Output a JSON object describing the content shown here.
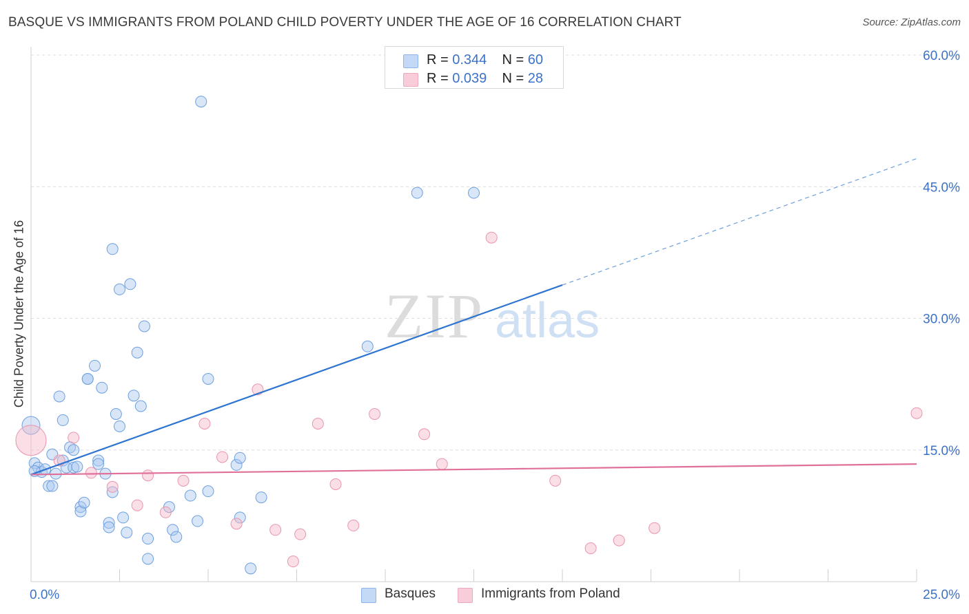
{
  "colors": {
    "blue_fill": "#a9c8f0",
    "blue_stroke": "#6d9fdf",
    "blue_line": "#2f74d0",
    "pink_fill": "#f5b7c8",
    "pink_stroke": "#e995ae",
    "pink_line": "#e0709a",
    "accent_text": "#3b72c8",
    "grid": "#dcdcdc"
  },
  "header": {
    "title": "BASQUE VS IMMIGRANTS FROM POLAND CHILD POVERTY UNDER THE AGE OF 16 CORRELATION CHART",
    "source": "Source: ZipAtlas.com"
  },
  "watermark": {
    "zip": "ZIP",
    "atlas": "atlas"
  },
  "legend": {
    "basques": {
      "r_label": "R =",
      "r_value": "0.344",
      "n_label": "N =",
      "n_value": "60"
    },
    "poland": {
      "r_label": "R =",
      "r_value": "0.039",
      "n_label": "N =",
      "n_value": "28"
    }
  },
  "chart_data": {
    "type": "scatter",
    "title": "BASQUE VS IMMIGRANTS FROM POLAND CHILD POVERTY UNDER THE AGE OF 16 CORRELATION CHART",
    "xlabel": "",
    "ylabel": "Child Poverty Under the Age of 16",
    "xlim": [
      0,
      25
    ],
    "ylim": [
      0,
      60
    ],
    "x_tick_labels": [
      "0.0%",
      "25.0%"
    ],
    "y_ticks": [
      15,
      30,
      45,
      60
    ],
    "y_tick_labels": [
      "15.0%",
      "30.0%",
      "45.0%",
      "60.0%"
    ],
    "grid": true,
    "legend_position": "bottom",
    "series": [
      {
        "name": "Basques",
        "color": "#6d9fdf",
        "r": 0.344,
        "n": 60,
        "trend": {
          "x0": 0,
          "y0": 12.2,
          "x1": 15,
          "y1": 33.8,
          "dashed_to_x": 25,
          "dashed_to_y": 48.2
        },
        "points": [
          [
            0.0,
            17.8,
            2
          ],
          [
            0.1,
            13.5,
            1
          ],
          [
            0.2,
            13.0,
            1
          ],
          [
            0.3,
            12.5,
            1
          ],
          [
            0.4,
            12.8,
            1
          ],
          [
            0.5,
            10.9,
            1
          ],
          [
            0.6,
            14.5,
            1
          ],
          [
            0.6,
            10.9,
            1
          ],
          [
            0.7,
            12.3,
            1
          ],
          [
            0.8,
            21.1,
            1
          ],
          [
            0.9,
            13.8,
            1
          ],
          [
            0.9,
            18.4,
            1
          ],
          [
            1.0,
            13.0,
            1
          ],
          [
            1.1,
            15.3,
            1
          ],
          [
            1.2,
            13.0,
            1
          ],
          [
            1.2,
            15.0,
            1
          ],
          [
            1.3,
            13.1,
            1
          ],
          [
            1.4,
            8.5,
            1
          ],
          [
            1.4,
            8.0,
            1
          ],
          [
            1.5,
            9.0,
            1
          ],
          [
            1.6,
            23.1,
            1
          ],
          [
            1.6,
            23.1,
            1
          ],
          [
            1.8,
            24.6,
            1
          ],
          [
            1.9,
            13.8,
            1
          ],
          [
            1.9,
            13.4,
            1
          ],
          [
            2.0,
            22.1,
            1
          ],
          [
            2.1,
            12.3,
            1
          ],
          [
            2.2,
            6.7,
            1
          ],
          [
            2.2,
            6.2,
            1
          ],
          [
            2.3,
            10.2,
            1
          ],
          [
            2.3,
            37.9,
            1
          ],
          [
            2.4,
            19.1,
            1
          ],
          [
            2.5,
            33.3,
            1
          ],
          [
            2.5,
            17.7,
            1
          ],
          [
            2.6,
            7.3,
            1
          ],
          [
            2.7,
            5.6,
            1
          ],
          [
            2.8,
            33.9,
            1
          ],
          [
            2.9,
            21.2,
            1
          ],
          [
            3.0,
            26.1,
            1
          ],
          [
            3.1,
            20.0,
            1
          ],
          [
            3.2,
            29.1,
            1
          ],
          [
            3.3,
            4.9,
            1
          ],
          [
            3.3,
            2.6,
            1
          ],
          [
            3.9,
            8.5,
            1
          ],
          [
            4.0,
            5.9,
            1
          ],
          [
            4.1,
            5.1,
            1
          ],
          [
            4.5,
            9.8,
            1
          ],
          [
            4.7,
            6.9,
            1
          ],
          [
            4.8,
            54.7,
            1
          ],
          [
            5.0,
            10.3,
            1
          ],
          [
            5.0,
            23.1,
            1
          ],
          [
            5.8,
            13.3,
            1
          ],
          [
            5.9,
            14.1,
            1
          ],
          [
            5.9,
            7.3,
            1
          ],
          [
            6.2,
            1.5,
            1
          ],
          [
            6.5,
            9.6,
            1
          ],
          [
            9.5,
            26.8,
            1
          ],
          [
            10.9,
            44.3,
            1
          ],
          [
            12.5,
            44.3,
            1
          ],
          [
            0.1,
            12.6,
            1
          ]
        ]
      },
      {
        "name": "Immigrants from Poland",
        "color": "#e995ae",
        "r": 0.039,
        "n": 28,
        "trend": {
          "x0": 0,
          "y0": 12.2,
          "x1": 25,
          "y1": 13.4
        },
        "points": [
          [
            0.0,
            16.1,
            3
          ],
          [
            0.8,
            13.8,
            1
          ],
          [
            1.2,
            16.4,
            1
          ],
          [
            1.7,
            12.4,
            1
          ],
          [
            2.3,
            10.8,
            1
          ],
          [
            3.0,
            8.7,
            1
          ],
          [
            3.3,
            12.1,
            1
          ],
          [
            3.8,
            7.9,
            1
          ],
          [
            4.3,
            11.5,
            1
          ],
          [
            4.9,
            18.0,
            1
          ],
          [
            5.4,
            14.2,
            1
          ],
          [
            5.8,
            6.6,
            1
          ],
          [
            6.4,
            21.9,
            1
          ],
          [
            6.9,
            5.9,
            1
          ],
          [
            7.4,
            2.3,
            1
          ],
          [
            7.6,
            5.4,
            1
          ],
          [
            8.1,
            18.0,
            1
          ],
          [
            8.6,
            11.1,
            1
          ],
          [
            9.1,
            6.4,
            1
          ],
          [
            9.7,
            19.1,
            1
          ],
          [
            11.1,
            16.8,
            1
          ],
          [
            11.6,
            13.4,
            1
          ],
          [
            13.0,
            39.2,
            1
          ],
          [
            14.8,
            11.5,
            1
          ],
          [
            15.8,
            3.8,
            1
          ],
          [
            16.6,
            4.7,
            1
          ],
          [
            17.6,
            6.1,
            1
          ],
          [
            25.0,
            19.2,
            1
          ]
        ]
      }
    ]
  }
}
